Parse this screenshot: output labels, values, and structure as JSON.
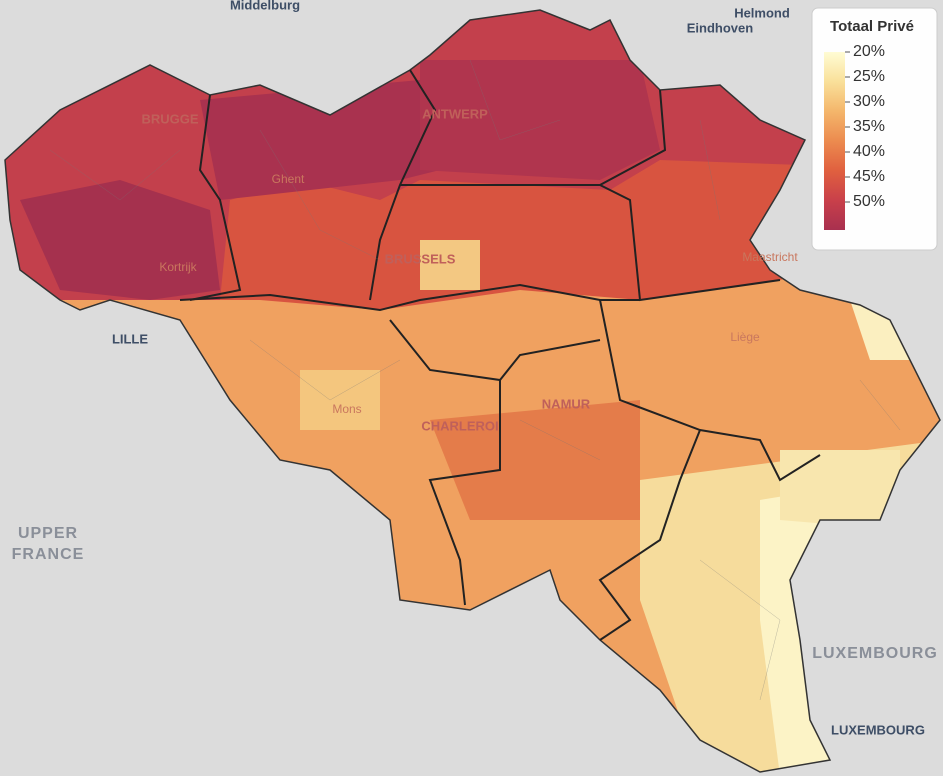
{
  "legend": {
    "title": "Totaal Privé",
    "ticks": [
      {
        "value": 20,
        "label": "20%"
      },
      {
        "value": 25,
        "label": "25%"
      },
      {
        "value": 30,
        "label": "30%"
      },
      {
        "value": 35,
        "label": "35%"
      },
      {
        "value": 40,
        "label": "40%"
      },
      {
        "value": 45,
        "label": "45%"
      },
      {
        "value": 50,
        "label": "50%"
      }
    ],
    "colors": [
      "#fffcd4",
      "#f9e09a",
      "#f4b66b",
      "#ec8b4f",
      "#e0603f",
      "#c9404a",
      "#a8304f"
    ]
  },
  "labels": [
    {
      "text": "Middelburg",
      "kind": "city"
    },
    {
      "text": "Helmond",
      "kind": "city"
    },
    {
      "text": "Eindhoven",
      "kind": "city"
    },
    {
      "text": "LILLE",
      "kind": "city-major"
    },
    {
      "text": "UPPER",
      "kind": "region"
    },
    {
      "text": "FRANCE",
      "kind": "region"
    },
    {
      "text": "LUXEMBOURG",
      "kind": "region"
    },
    {
      "text": "LUXEMBOURG",
      "kind": "city-major"
    },
    {
      "text": "Maastricht",
      "kind": "faint"
    },
    {
      "text": "BRUGGE",
      "kind": "faint-major"
    },
    {
      "text": "ANTWERP",
      "kind": "faint-major"
    },
    {
      "text": "Ghent",
      "kind": "faint"
    },
    {
      "text": "Kortrijk",
      "kind": "faint"
    },
    {
      "text": "BRUSSELS",
      "kind": "faint-major"
    },
    {
      "text": "Liège",
      "kind": "faint"
    },
    {
      "text": "Mons",
      "kind": "faint"
    },
    {
      "text": "CHARLEROI",
      "kind": "faint-major"
    },
    {
      "text": "NAMUR",
      "kind": "faint-major"
    }
  ]
}
